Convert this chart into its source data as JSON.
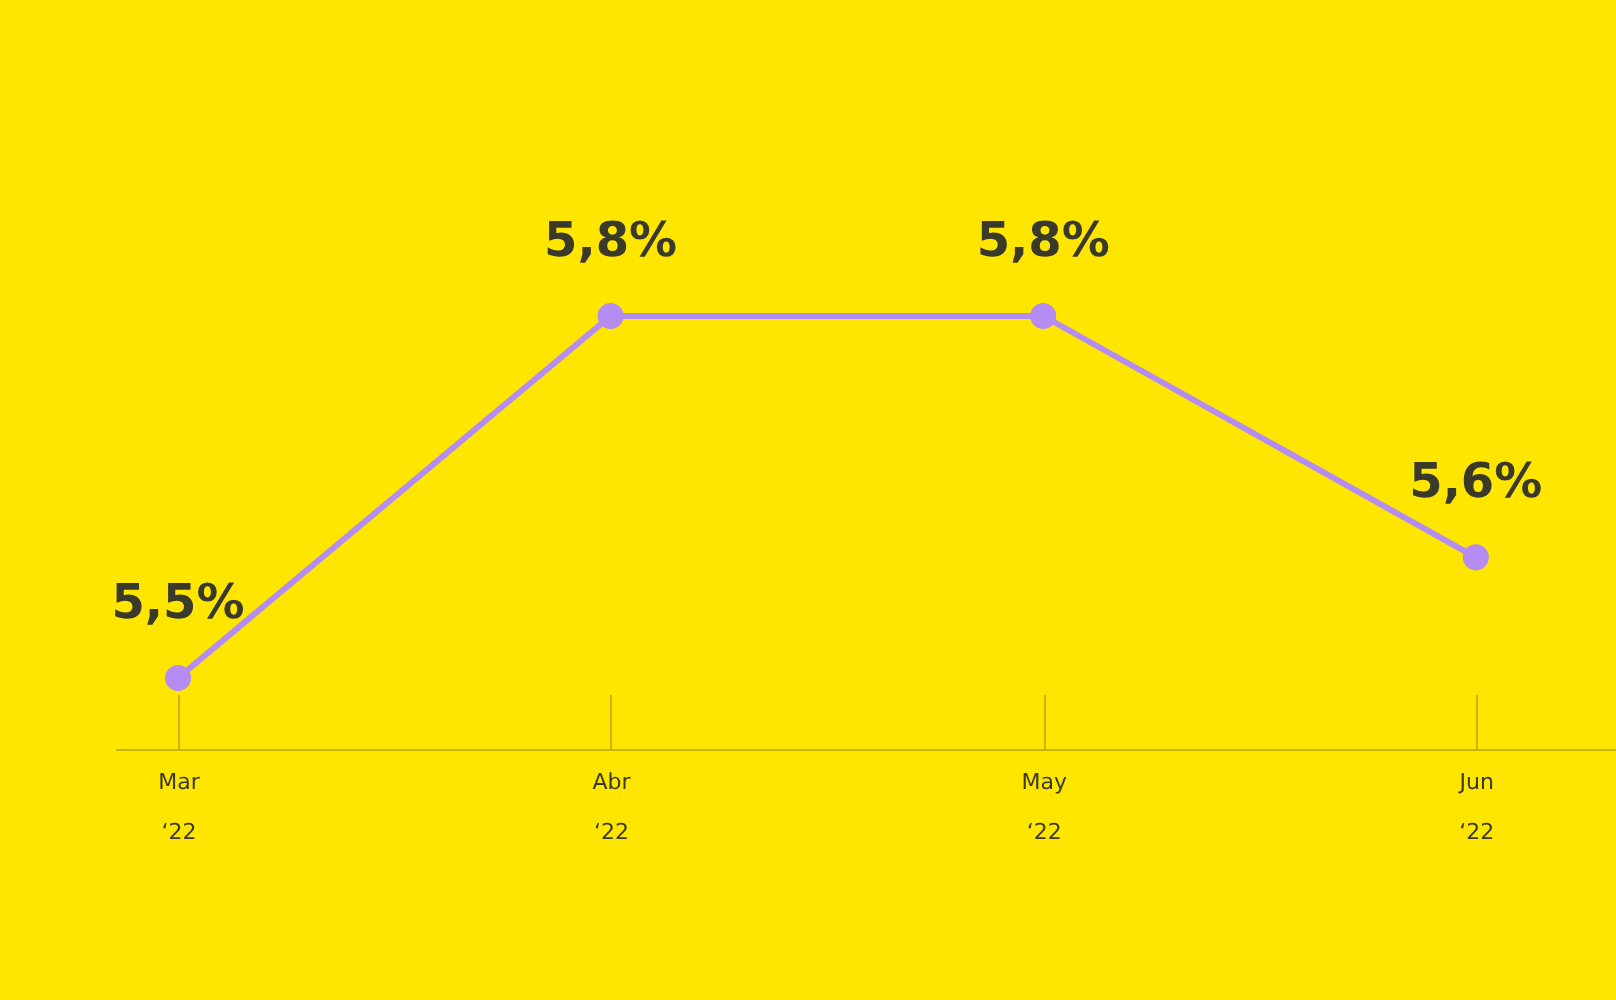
{
  "chart_data": {
    "type": "line",
    "categories": [
      "Mar\n‘22",
      "Abr\n‘22",
      "May\n‘22",
      "Jun\n‘22"
    ],
    "series": [
      {
        "color": "#b48cf2",
        "values": [
          5.5,
          5.8,
          5.8,
          5.6
        ],
        "value_labels": [
          "5,5%",
          "5,8%",
          "5,8%",
          "5,6%"
        ]
      }
    ],
    "marker": "circle",
    "grid": false
  }
}
